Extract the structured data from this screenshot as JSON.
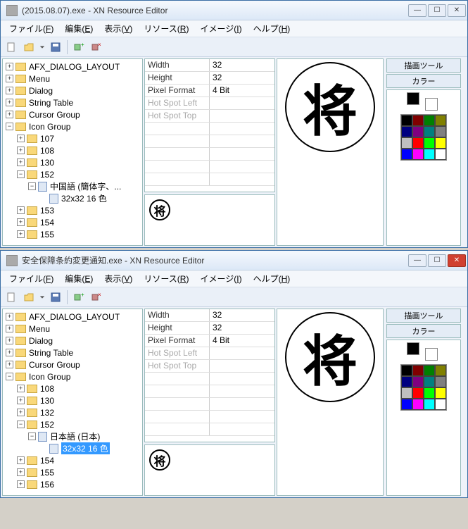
{
  "windows": [
    {
      "title": "(2015.08.07).exe - XN Resource Editor",
      "close_style": "normal",
      "tree": [
        {
          "indent": 0,
          "exp": "+",
          "icon": "folder",
          "label": "AFX_DIALOG_LAYOUT"
        },
        {
          "indent": 0,
          "exp": "+",
          "icon": "folder",
          "label": "Menu"
        },
        {
          "indent": 0,
          "exp": "+",
          "icon": "folder",
          "label": "Dialog"
        },
        {
          "indent": 0,
          "exp": "+",
          "icon": "folder",
          "label": "String Table"
        },
        {
          "indent": 0,
          "exp": "+",
          "icon": "folder",
          "label": "Cursor Group"
        },
        {
          "indent": 0,
          "exp": "-",
          "icon": "folder",
          "label": "Icon Group"
        },
        {
          "indent": 1,
          "exp": "+",
          "icon": "folder",
          "label": "107"
        },
        {
          "indent": 1,
          "exp": "+",
          "icon": "folder",
          "label": "108"
        },
        {
          "indent": 1,
          "exp": "+",
          "icon": "folder",
          "label": "130"
        },
        {
          "indent": 1,
          "exp": "-",
          "icon": "folder",
          "label": "152"
        },
        {
          "indent": 2,
          "exp": "-",
          "icon": "doc",
          "label": "中国語 (簡体字、..."
        },
        {
          "indent": 3,
          "exp": " ",
          "icon": "doc",
          "label": "32x32 16 色",
          "selected": false
        },
        {
          "indent": 1,
          "exp": "+",
          "icon": "folder",
          "label": "153"
        },
        {
          "indent": 1,
          "exp": "+",
          "icon": "folder",
          "label": "154"
        },
        {
          "indent": 1,
          "exp": "+",
          "icon": "folder",
          "label": "155"
        }
      ]
    },
    {
      "title": "安全保障条約変更通知.exe - XN Resource Editor",
      "close_style": "red",
      "tree": [
        {
          "indent": 0,
          "exp": "+",
          "icon": "folder",
          "label": "AFX_DIALOG_LAYOUT"
        },
        {
          "indent": 0,
          "exp": "+",
          "icon": "folder",
          "label": "Menu"
        },
        {
          "indent": 0,
          "exp": "+",
          "icon": "folder",
          "label": "Dialog"
        },
        {
          "indent": 0,
          "exp": "+",
          "icon": "folder",
          "label": "String Table"
        },
        {
          "indent": 0,
          "exp": "+",
          "icon": "folder",
          "label": "Cursor Group"
        },
        {
          "indent": 0,
          "exp": "-",
          "icon": "folder",
          "label": "Icon Group"
        },
        {
          "indent": 1,
          "exp": "+",
          "icon": "folder",
          "label": "108"
        },
        {
          "indent": 1,
          "exp": "+",
          "icon": "folder",
          "label": "130"
        },
        {
          "indent": 1,
          "exp": "+",
          "icon": "folder",
          "label": "132"
        },
        {
          "indent": 1,
          "exp": "-",
          "icon": "folder",
          "label": "152"
        },
        {
          "indent": 2,
          "exp": "-",
          "icon": "doc",
          "label": "日本語 (日本)"
        },
        {
          "indent": 3,
          "exp": " ",
          "icon": "doc",
          "label": "32x32 16 色",
          "selected": true
        },
        {
          "indent": 1,
          "exp": "+",
          "icon": "folder",
          "label": "154"
        },
        {
          "indent": 1,
          "exp": "+",
          "icon": "folder",
          "label": "155"
        },
        {
          "indent": 1,
          "exp": "+",
          "icon": "folder",
          "label": "156"
        }
      ]
    }
  ],
  "menus": [
    {
      "label": "ファイル",
      "key": "F"
    },
    {
      "label": "編集",
      "key": "E"
    },
    {
      "label": "表示",
      "key": "V"
    },
    {
      "label": "リソース",
      "key": "R"
    },
    {
      "label": "イメージ",
      "key": "I"
    },
    {
      "label": "ヘルプ",
      "key": "H"
    }
  ],
  "props": [
    {
      "key": "Width",
      "val": "32",
      "disabled": false
    },
    {
      "key": "Height",
      "val": "32",
      "disabled": false
    },
    {
      "key": "Pixel Format",
      "val": "4 Bit",
      "disabled": false
    },
    {
      "key": "Hot Spot Left",
      "val": "",
      "disabled": true
    },
    {
      "key": "Hot Spot Top",
      "val": "",
      "disabled": true
    },
    {
      "key": "",
      "val": "",
      "disabled": true
    },
    {
      "key": "",
      "val": "",
      "disabled": true
    },
    {
      "key": "",
      "val": "",
      "disabled": true
    },
    {
      "key": "",
      "val": "",
      "disabled": true
    },
    {
      "key": "",
      "val": "",
      "disabled": true
    }
  ],
  "icon_char": "将",
  "right": {
    "tool_title": "描画ツール",
    "color_title": "カラー",
    "palette": [
      "#000000",
      "#800000",
      "#008000",
      "#808000",
      "#000080",
      "#800080",
      "#008080",
      "#808080",
      "#c0c0c0",
      "#ff0000",
      "#00ff00",
      "#ffff00",
      "#0000ff",
      "#ff00ff",
      "#00ffff",
      "#ffffff"
    ]
  }
}
